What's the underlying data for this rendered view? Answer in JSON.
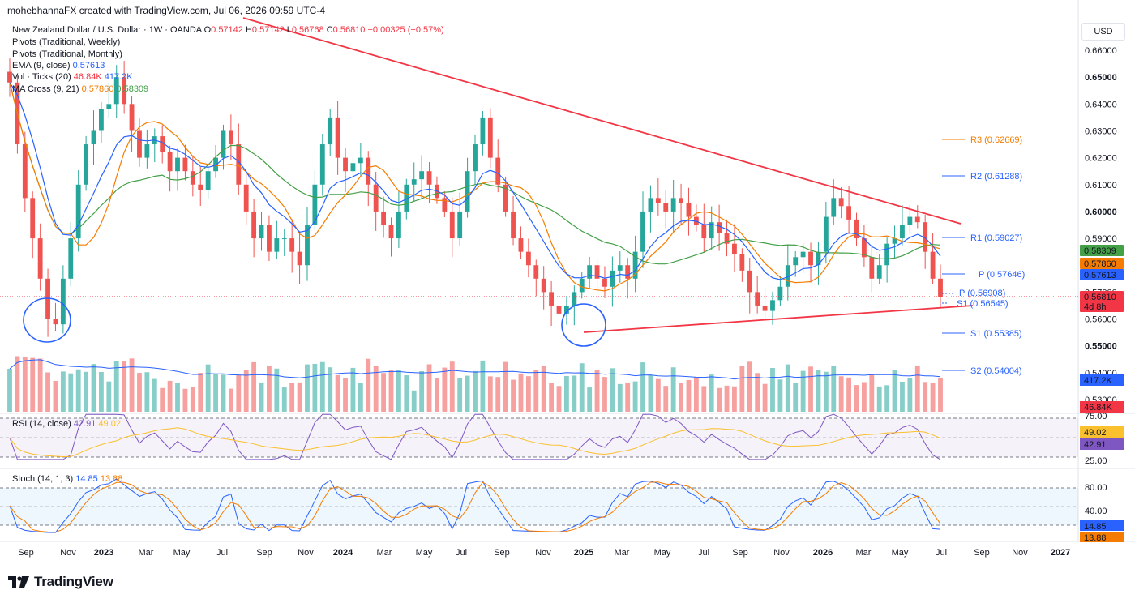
{
  "header": {
    "text": "mohebhannaFX created with TradingView.com, Jul 06, 2026 09:59 UTC-4"
  },
  "currency_button": "USD",
  "footer": {
    "brand": "TradingView"
  },
  "legend": {
    "symbol": "New Zealand Dollar / U.S. Dollar · 1W · OANDA",
    "ohlc": {
      "o_label": "O",
      "o": "0.57142",
      "h_label": "H",
      "h": "0.57142",
      "l_label": "L",
      "l": "0.56768",
      "c_label": "C",
      "c": "0.56810",
      "chg": "−0.00325 (−0.57%)"
    },
    "line2": "Pivots (Traditional, Weekly)",
    "line3": "Pivots (Traditional, Monthly)",
    "ema": {
      "label": "EMA (9, close)",
      "value": "0.57613"
    },
    "vol": {
      "label": "Vol · Ticks (20)",
      "v1": "46.84K",
      "v2": "417.2K"
    },
    "ma": {
      "label": "MA Cross (9, 21)",
      "v1": "0.57860",
      "v2": "0.58309"
    }
  },
  "rsi_legend": {
    "label": "RSI (14, close)",
    "v1": "42.91",
    "v2": "49.02"
  },
  "stoch_legend": {
    "label": "Stoch (14, 1, 3)",
    "v1": "14.85",
    "v2": "13.88"
  },
  "colors": {
    "up": "#26a69a",
    "down": "#ef5350",
    "ema": "#2962ff",
    "ma_fast": "#f57c00",
    "ma_slow": "#43a047",
    "trend": "#f23645",
    "rsi": "#7e57c2",
    "rsi_ma": "#fbc02d",
    "stoch_k": "#2962ff",
    "stoch_d": "#f57c00",
    "circle": "#2962ff"
  },
  "chart_data": {
    "type": "candlestick",
    "price_axis": {
      "min": 0.523,
      "max": 0.665,
      "ticks": [
        "0.66000",
        "0.65000",
        "0.64000",
        "0.63000",
        "0.62000",
        "0.61000",
        "0.60000",
        "0.59000",
        "0.58000",
        "0.57000",
        "0.56000",
        "0.55000",
        "0.54000",
        "0.53000"
      ]
    },
    "date_axis": [
      "Sep",
      "Nov",
      "2023",
      "Mar",
      "May",
      "Jul",
      "Sep",
      "Nov",
      "2024",
      "Mar",
      "May",
      "Jul",
      "Sep",
      "Nov",
      "2025",
      "Mar",
      "May",
      "Jul",
      "Sep",
      "Nov",
      "2026",
      "Mar",
      "May",
      "Jul",
      "Sep",
      "Nov",
      "2027"
    ],
    "bold_dates": [
      "2023",
      "2024",
      "2025",
      "2026",
      "2027"
    ],
    "price_path": [
      0.648,
      0.625,
      0.605,
      0.59,
      0.575,
      0.56,
      0.558,
      0.575,
      0.59,
      0.61,
      0.625,
      0.63,
      0.638,
      0.64,
      0.65,
      0.64,
      0.63,
      0.62,
      0.625,
      0.628,
      0.622,
      0.615,
      0.62,
      0.615,
      0.61,
      0.608,
      0.615,
      0.62,
      0.63,
      0.625,
      0.61,
      0.6,
      0.59,
      0.595,
      0.585,
      0.59,
      0.59,
      0.585,
      0.58,
      0.595,
      0.61,
      0.625,
      0.635,
      0.62,
      0.615,
      0.618,
      0.62,
      0.61,
      0.6,
      0.595,
      0.59,
      0.6,
      0.61,
      0.612,
      0.615,
      0.61,
      0.605,
      0.6,
      0.59,
      0.6,
      0.615,
      0.625,
      0.635,
      0.62,
      0.61,
      0.6,
      0.59,
      0.585,
      0.58,
      0.575,
      0.57,
      0.565,
      0.562,
      0.565,
      0.57,
      0.575,
      0.58,
      0.575,
      0.572,
      0.578,
      0.58,
      0.575,
      0.585,
      0.6,
      0.605,
      0.603,
      0.6,
      0.605,
      0.603,
      0.598,
      0.595,
      0.59,
      0.596,
      0.592,
      0.588,
      0.584,
      0.578,
      0.57,
      0.565,
      0.563,
      0.567,
      0.572,
      0.58,
      0.583,
      0.585,
      0.58,
      0.585,
      0.598,
      0.605,
      0.602,
      0.597,
      0.59,
      0.583,
      0.575,
      0.58,
      0.588,
      0.59,
      0.595,
      0.598,
      0.596,
      0.585,
      0.575,
      0.5681
    ],
    "pivots_weekly": [
      {
        "label": "P",
        "value": "0.56908"
      },
      {
        "label": "S1",
        "value": "0.56545"
      }
    ],
    "pivots_monthly": [
      {
        "label": "R3",
        "value": "0.62669"
      },
      {
        "label": "R2",
        "value": "0.61288"
      },
      {
        "label": "R1",
        "value": "0.59027"
      },
      {
        "label": "P",
        "value": "0.57646"
      },
      {
        "label": "S1",
        "value": "0.55385"
      },
      {
        "label": "S2",
        "value": "0.54004"
      }
    ],
    "price_labels": [
      {
        "value": "0.58309",
        "color": "#43a047"
      },
      {
        "value": "0.57860",
        "color": "#f57c00"
      },
      {
        "value": "0.57613",
        "color": "#2962ff"
      },
      {
        "value": "0.56810",
        "color": "#f23645"
      },
      {
        "value": "4d 8h",
        "color": "#f23645"
      }
    ],
    "volume_labels": [
      {
        "value": "417.2K",
        "color": "#2962ff"
      },
      {
        "value": "46.84K",
        "color": "#f23645"
      }
    ],
    "rsi_axis": {
      "ticks": [
        "75.00",
        "25.00"
      ],
      "labels": [
        {
          "value": "49.02",
          "color": "#fbc02d"
        },
        {
          "value": "42.91",
          "color": "#7e57c2"
        }
      ]
    },
    "stoch_axis": {
      "ticks": [
        "80.00",
        "40.00"
      ],
      "labels": [
        {
          "value": "14.85",
          "color": "#2962ff"
        },
        {
          "value": "13.88",
          "color": "#f57c00"
        }
      ]
    },
    "trendlines": [
      {
        "from": [
          0,
          0.665
        ],
        "to": [
          1,
          0.595
        ],
        "note": "descending"
      },
      {
        "from": [
          0,
          0.555
        ],
        "to": [
          1,
          0.563
        ],
        "note": "ascending"
      }
    ]
  }
}
